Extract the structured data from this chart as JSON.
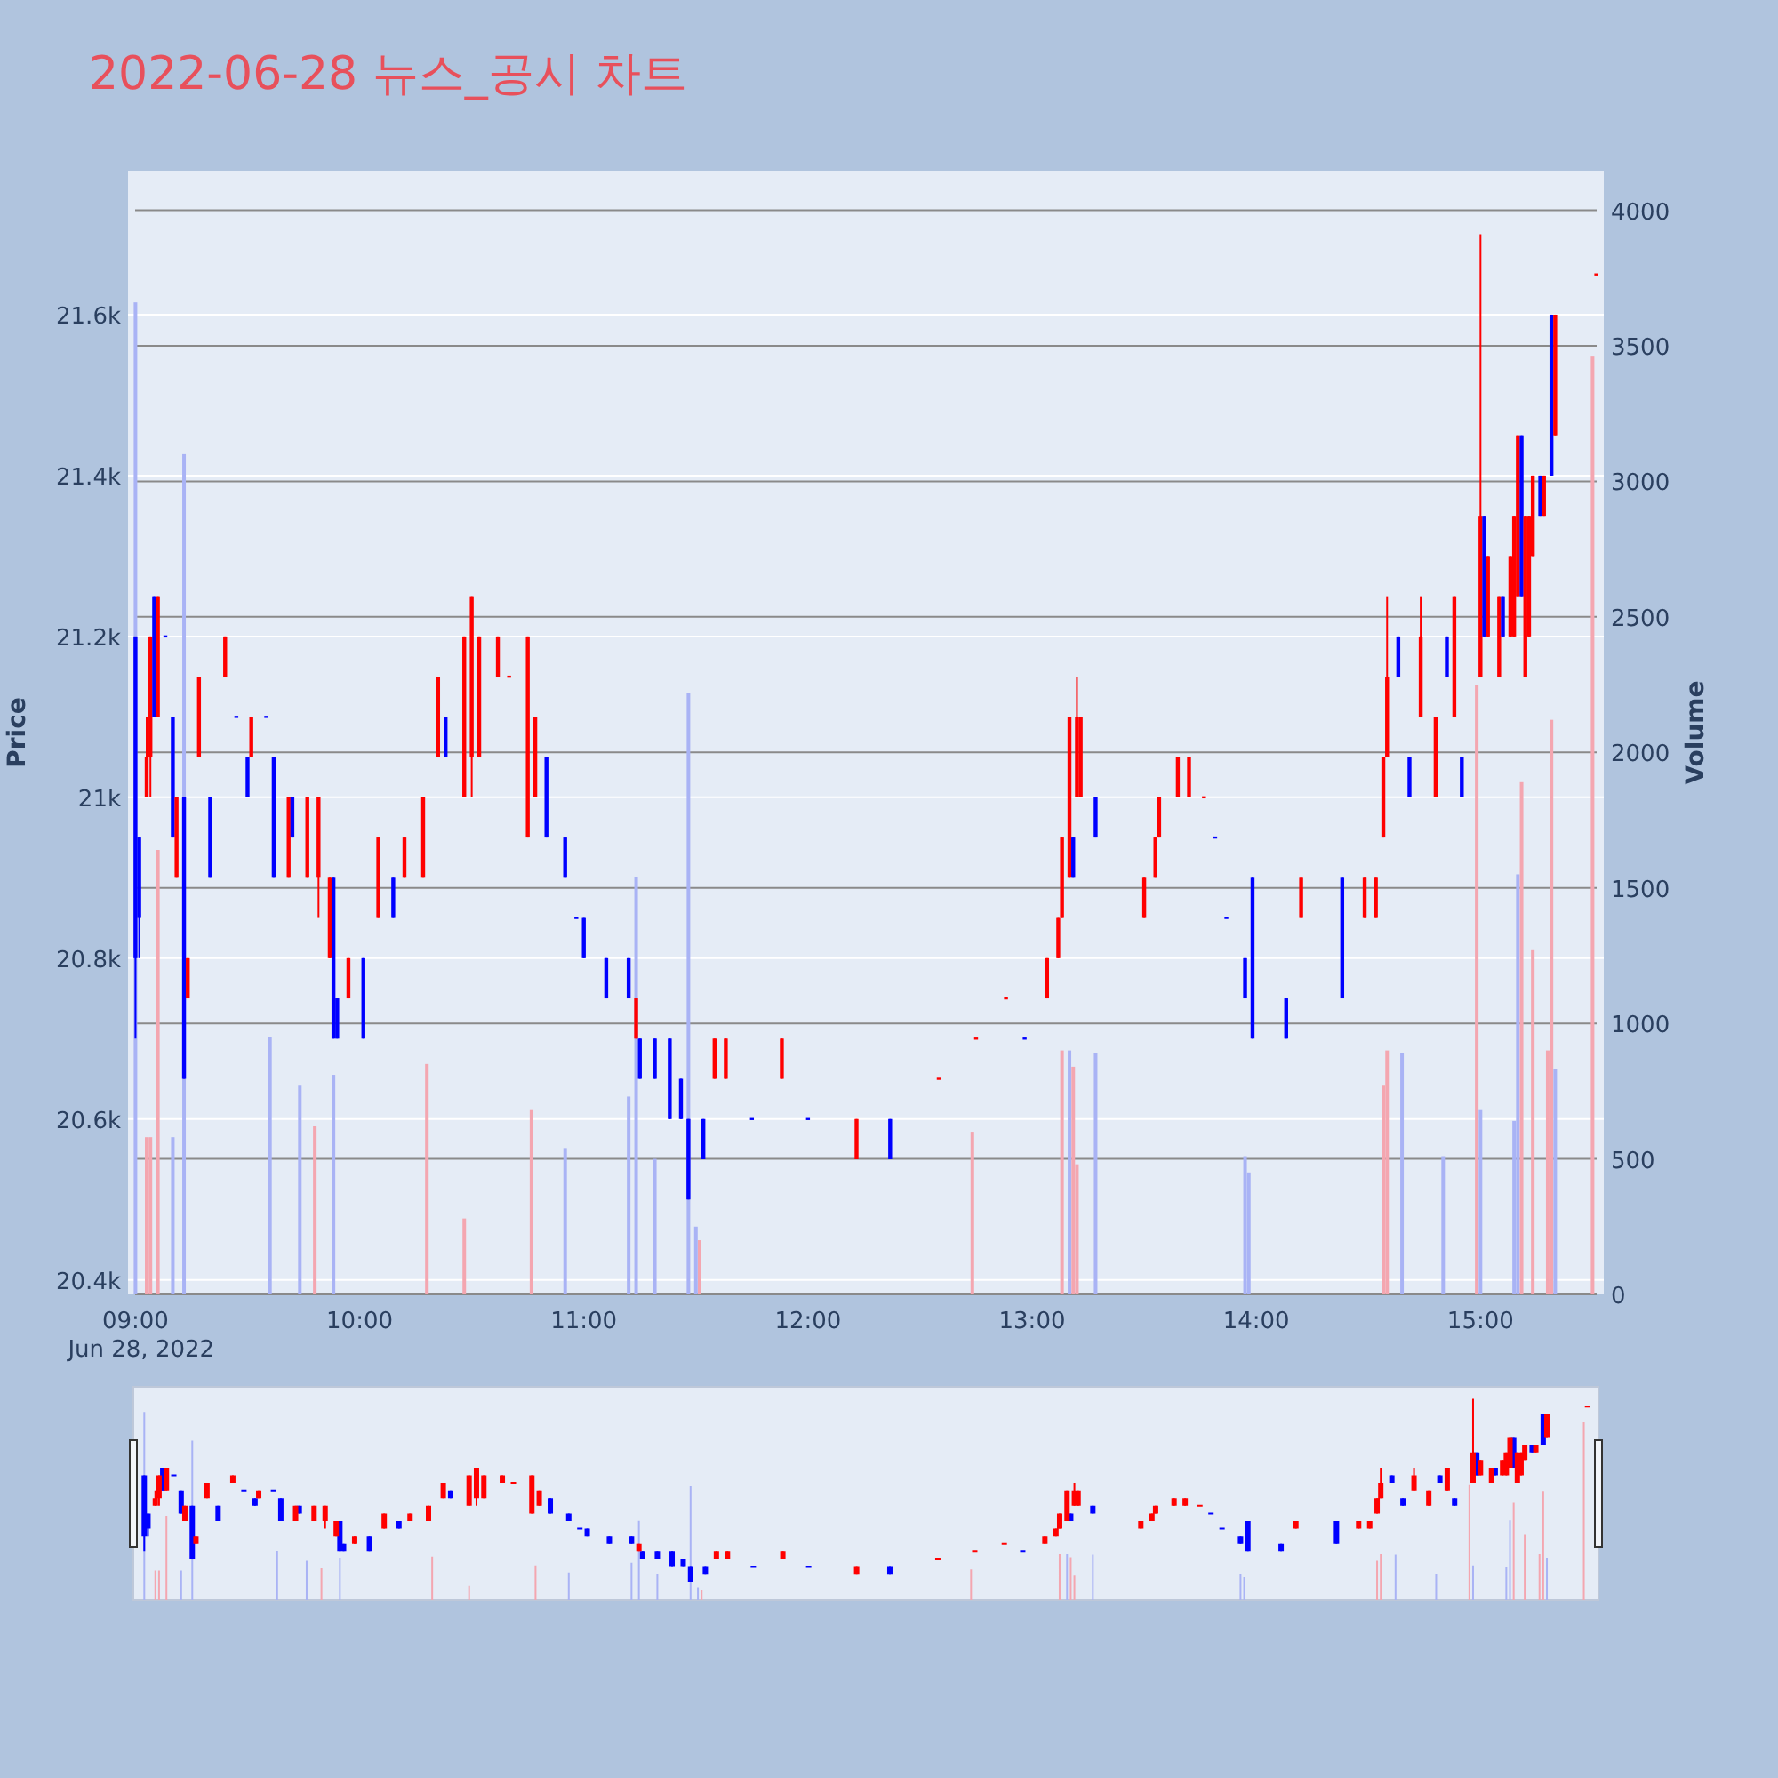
{
  "chart_data": {
    "type": "candlestick",
    "title": "2022-06-28 뉴스_공시 차트",
    "ylabel": "Price",
    "y2label": "Volume",
    "annotations": [
      "Jun 28, 2022"
    ],
    "xlim": [
      "2022-06-28T08:58",
      "2022-06-28T15:33"
    ],
    "xticks": [
      {
        "value": "2022-06-28T09:00",
        "label": "09:00"
      },
      {
        "value": "2022-06-28T10:00",
        "label": "10:00"
      },
      {
        "value": "2022-06-28T11:00",
        "label": "11:00"
      },
      {
        "value": "2022-06-28T12:00",
        "label": "12:00"
      },
      {
        "value": "2022-06-28T13:00",
        "label": "13:00"
      },
      {
        "value": "2022-06-28T14:00",
        "label": "14:00"
      },
      {
        "value": "2022-06-28T15:00",
        "label": "15:00"
      }
    ],
    "ylim": [
      20382,
      21779
    ],
    "yticks": [
      {
        "value": 20400,
        "label": "20.4k"
      },
      {
        "value": 20600,
        "label": "20.6k"
      },
      {
        "value": 20800,
        "label": "20.8k"
      },
      {
        "value": 21000,
        "label": "21k"
      },
      {
        "value": 21200,
        "label": "21.2k"
      },
      {
        "value": 21400,
        "label": "21.4k"
      },
      {
        "value": 21600,
        "label": "21.6k"
      }
    ],
    "y2lim": [
      0,
      4146
    ],
    "y2ticks": [
      0,
      500,
      1000,
      1500,
      2000,
      2500,
      3000,
      3500,
      4000
    ],
    "grid": true,
    "series": [
      {
        "type": "candlestick",
        "x": [
          "2022-06-28T09:00",
          "2022-06-28T09:01",
          "2022-06-28T09:03",
          "2022-06-28T09:04",
          "2022-06-28T09:05",
          "2022-06-28T09:06",
          "2022-06-28T09:08",
          "2022-06-28T09:10",
          "2022-06-28T09:11",
          "2022-06-28T09:13",
          "2022-06-28T09:14",
          "2022-06-28T09:17",
          "2022-06-28T09:20",
          "2022-06-28T09:24",
          "2022-06-28T09:27",
          "2022-06-28T09:30",
          "2022-06-28T09:31",
          "2022-06-28T09:35",
          "2022-06-28T09:37",
          "2022-06-28T09:41",
          "2022-06-28T09:42",
          "2022-06-28T09:46",
          "2022-06-28T09:49",
          "2022-06-28T09:52",
          "2022-06-28T09:53",
          "2022-06-28T09:54",
          "2022-06-28T09:57",
          "2022-06-28T10:01",
          "2022-06-28T10:05",
          "2022-06-28T10:09",
          "2022-06-28T10:12",
          "2022-06-28T10:17",
          "2022-06-28T10:21",
          "2022-06-28T10:23",
          "2022-06-28T10:28",
          "2022-06-28T10:30",
          "2022-06-28T10:32",
          "2022-06-28T10:37",
          "2022-06-28T10:40",
          "2022-06-28T10:45",
          "2022-06-28T10:47",
          "2022-06-28T10:50",
          "2022-06-28T10:55",
          "2022-06-28T10:58",
          "2022-06-28T11:00",
          "2022-06-28T11:06",
          "2022-06-28T11:12",
          "2022-06-28T11:14",
          "2022-06-28T11:15",
          "2022-06-28T11:19",
          "2022-06-28T11:23",
          "2022-06-28T11:26",
          "2022-06-28T11:28",
          "2022-06-28T11:32",
          "2022-06-28T11:35",
          "2022-06-28T11:38",
          "2022-06-28T11:45",
          "2022-06-28T11:53",
          "2022-06-28T12:00",
          "2022-06-28T12:13",
          "2022-06-28T12:22",
          "2022-06-28T12:35",
          "2022-06-28T12:45",
          "2022-06-28T12:53",
          "2022-06-28T12:58",
          "2022-06-28T13:04",
          "2022-06-28T13:07",
          "2022-06-28T13:08",
          "2022-06-28T13:10",
          "2022-06-28T13:11",
          "2022-06-28T13:12",
          "2022-06-28T13:13",
          "2022-06-28T13:17",
          "2022-06-28T13:30",
          "2022-06-28T13:33",
          "2022-06-28T13:34",
          "2022-06-28T13:39",
          "2022-06-28T13:42",
          "2022-06-28T13:46",
          "2022-06-28T13:49",
          "2022-06-28T13:52",
          "2022-06-28T13:57",
          "2022-06-28T13:59",
          "2022-06-28T14:08",
          "2022-06-28T14:12",
          "2022-06-28T14:23",
          "2022-06-28T14:29",
          "2022-06-28T14:32",
          "2022-06-28T14:34",
          "2022-06-28T14:35",
          "2022-06-28T14:38",
          "2022-06-28T14:41",
          "2022-06-28T14:44",
          "2022-06-28T14:48",
          "2022-06-28T14:51",
          "2022-06-28T14:53",
          "2022-06-28T14:55",
          "2022-06-28T15:00",
          "2022-06-28T15:01",
          "2022-06-28T15:02",
          "2022-06-28T15:05",
          "2022-06-28T15:06",
          "2022-06-28T15:08",
          "2022-06-28T15:09",
          "2022-06-28T15:10",
          "2022-06-28T15:11",
          "2022-06-28T15:12",
          "2022-06-28T15:13",
          "2022-06-28T15:14",
          "2022-06-28T15:16",
          "2022-06-28T15:17",
          "2022-06-28T15:19",
          "2022-06-28T15:20",
          "2022-06-28T15:31"
        ],
        "ohlc": [
          [
            21200,
            21200,
            20700,
            20800
          ],
          [
            20950,
            20950,
            20800,
            20850
          ],
          [
            21000,
            21100,
            21000,
            21050
          ],
          [
            21050,
            21200,
            21000,
            21200
          ],
          [
            21250,
            21250,
            21100,
            21100
          ],
          [
            21100,
            21250,
            21100,
            21250
          ],
          [
            21200,
            21200,
            21200,
            21200
          ],
          [
            21100,
            21100,
            20950,
            20950
          ],
          [
            20900,
            21000,
            20900,
            21000
          ],
          [
            21000,
            21000,
            20650,
            20650
          ],
          [
            20750,
            20800,
            20750,
            20800
          ],
          [
            21050,
            21150,
            21050,
            21150
          ],
          [
            21000,
            21000,
            20900,
            20900
          ],
          [
            21150,
            21200,
            21150,
            21200
          ],
          [
            21100,
            21100,
            21100,
            21100
          ],
          [
            21050,
            21050,
            21000,
            21000
          ],
          [
            21050,
            21100,
            21050,
            21100
          ],
          [
            21100,
            21100,
            21100,
            21100
          ],
          [
            21050,
            21050,
            20900,
            20900
          ],
          [
            20900,
            21000,
            20900,
            21000
          ],
          [
            21000,
            21000,
            20950,
            20950
          ],
          [
            20900,
            21000,
            20900,
            21000
          ],
          [
            20900,
            21000,
            20850,
            21000
          ],
          [
            20800,
            20900,
            20800,
            20900
          ],
          [
            20900,
            20900,
            20700,
            20700
          ],
          [
            20750,
            20750,
            20700,
            20700
          ],
          [
            20750,
            20800,
            20750,
            20800
          ],
          [
            20800,
            20800,
            20700,
            20700
          ],
          [
            20850,
            20950,
            20850,
            20950
          ],
          [
            20900,
            20900,
            20850,
            20850
          ],
          [
            20900,
            20950,
            20900,
            20950
          ],
          [
            20900,
            21000,
            20900,
            21000
          ],
          [
            21050,
            21150,
            21050,
            21150
          ],
          [
            21100,
            21100,
            21050,
            21050
          ],
          [
            21000,
            21200,
            21000,
            21200
          ],
          [
            21050,
            21250,
            21000,
            21250
          ],
          [
            21050,
            21200,
            21050,
            21200
          ],
          [
            21150,
            21200,
            21150,
            21200
          ],
          [
            21150,
            21150,
            21150,
            21150
          ],
          [
            20950,
            21200,
            20950,
            21200
          ],
          [
            21000,
            21100,
            21000,
            21100
          ],
          [
            21050,
            21050,
            20950,
            20950
          ],
          [
            20950,
            20950,
            20900,
            20900
          ],
          [
            20850,
            20850,
            20850,
            20850
          ],
          [
            20850,
            20850,
            20800,
            20800
          ],
          [
            20800,
            20800,
            20750,
            20750
          ],
          [
            20800,
            20800,
            20750,
            20750
          ],
          [
            20700,
            20750,
            20700,
            20750
          ],
          [
            20700,
            20700,
            20650,
            20650
          ],
          [
            20700,
            20700,
            20650,
            20650
          ],
          [
            20700,
            20700,
            20600,
            20600
          ],
          [
            20650,
            20650,
            20600,
            20600
          ],
          [
            20600,
            20600,
            20500,
            20500
          ],
          [
            20600,
            20600,
            20550,
            20550
          ],
          [
            20650,
            20700,
            20650,
            20700
          ],
          [
            20650,
            20700,
            20650,
            20700
          ],
          [
            20600,
            20600,
            20600,
            20600
          ],
          [
            20650,
            20700,
            20650,
            20700
          ],
          [
            20600,
            20600,
            20600,
            20600
          ],
          [
            20550,
            20600,
            20550,
            20600
          ],
          [
            20600,
            20600,
            20550,
            20550
          ],
          [
            20650,
            20650,
            20650,
            20650
          ],
          [
            20700,
            20700,
            20700,
            20700
          ],
          [
            20750,
            20750,
            20750,
            20750
          ],
          [
            20700,
            20700,
            20700,
            20700
          ],
          [
            20750,
            20800,
            20750,
            20800
          ],
          [
            20800,
            20850,
            20800,
            20850
          ],
          [
            20850,
            20950,
            20850,
            20950
          ],
          [
            20900,
            21100,
            20900,
            21100
          ],
          [
            20950,
            20950,
            20900,
            20900
          ],
          [
            21000,
            21150,
            21000,
            21100
          ],
          [
            21000,
            21100,
            21000,
            21100
          ],
          [
            21000,
            21000,
            20950,
            20950
          ],
          [
            20850,
            20900,
            20850,
            20900
          ],
          [
            20900,
            20950,
            20900,
            20950
          ],
          [
            20950,
            21000,
            20950,
            21000
          ],
          [
            21000,
            21050,
            21000,
            21050
          ],
          [
            21000,
            21050,
            21000,
            21050
          ],
          [
            21000,
            21000,
            21000,
            21000
          ],
          [
            20950,
            20950,
            20950,
            20950
          ],
          [
            20850,
            20850,
            20850,
            20850
          ],
          [
            20800,
            20800,
            20750,
            20750
          ],
          [
            20900,
            20900,
            20700,
            20700
          ],
          [
            20750,
            20750,
            20700,
            20700
          ],
          [
            20850,
            20900,
            20850,
            20900
          ],
          [
            20900,
            20900,
            20750,
            20750
          ],
          [
            20850,
            20900,
            20850,
            20900
          ],
          [
            20850,
            20900,
            20850,
            20900
          ],
          [
            20950,
            21050,
            20950,
            21050
          ],
          [
            21050,
            21250,
            21050,
            21150
          ],
          [
            21200,
            21200,
            21150,
            21150
          ],
          [
            21050,
            21050,
            21000,
            21000
          ],
          [
            21100,
            21250,
            21100,
            21200
          ],
          [
            21000,
            21100,
            21000,
            21100
          ],
          [
            21200,
            21200,
            21150,
            21150
          ],
          [
            21100,
            21250,
            21100,
            21250
          ],
          [
            21050,
            21050,
            21000,
            21000
          ],
          [
            21150,
            21700,
            21150,
            21350
          ],
          [
            21350,
            21350,
            21200,
            21200
          ],
          [
            21200,
            21300,
            21200,
            21300
          ],
          [
            21150,
            21250,
            21150,
            21250
          ],
          [
            21250,
            21250,
            21200,
            21200
          ],
          [
            21200,
            21300,
            21200,
            21300
          ],
          [
            21200,
            21350,
            21200,
            21350
          ],
          [
            21250,
            21450,
            21250,
            21450
          ],
          [
            21450,
            21450,
            21250,
            21250
          ],
          [
            21150,
            21350,
            21150,
            21350
          ],
          [
            21200,
            21350,
            21200,
            21350
          ],
          [
            21300,
            21400,
            21300,
            21400
          ],
          [
            21400,
            21400,
            21350,
            21350
          ],
          [
            21350,
            21400,
            21350,
            21400
          ],
          [
            21600,
            21600,
            21400,
            21400
          ],
          [
            21450,
            21600,
            21450,
            21600
          ],
          [
            21650,
            21650,
            21650,
            21650
          ]
        ],
        "colors": [
          "#0000ff",
          "#0000ff",
          "#ff0000",
          "#ff0000",
          "#0000ff",
          "#ff0000",
          "#0000ff",
          "#0000ff",
          "#ff0000",
          "#0000ff",
          "#ff0000",
          "#ff0000",
          "#0000ff",
          "#ff0000",
          "#0000ff",
          "#0000ff",
          "#ff0000",
          "#0000ff",
          "#0000ff",
          "#ff0000",
          "#0000ff",
          "#ff0000",
          "#ff0000",
          "#ff0000",
          "#0000ff",
          "#0000ff",
          "#ff0000",
          "#0000ff",
          "#ff0000",
          "#0000ff",
          "#ff0000",
          "#ff0000",
          "#ff0000",
          "#0000ff",
          "#ff0000",
          "#ff0000",
          "#ff0000",
          "#ff0000",
          "#ff0000",
          "#ff0000",
          "#ff0000",
          "#0000ff",
          "#0000ff",
          "#0000ff",
          "#0000ff",
          "#0000ff",
          "#0000ff",
          "#ff0000",
          "#0000ff",
          "#0000ff",
          "#0000ff",
          "#0000ff",
          "#0000ff",
          "#0000ff",
          "#ff0000",
          "#ff0000",
          "#0000ff",
          "#ff0000",
          "#0000ff",
          "#ff0000",
          "#0000ff",
          "#ff0000",
          "#ff0000",
          "#ff0000",
          "#0000ff",
          "#ff0000",
          "#ff0000",
          "#ff0000",
          "#ff0000",
          "#0000ff",
          "#ff0000",
          "#ff0000",
          "#0000ff",
          "#ff0000",
          "#ff0000",
          "#ff0000",
          "#ff0000",
          "#ff0000",
          "#ff0000",
          "#0000ff",
          "#0000ff",
          "#0000ff",
          "#0000ff",
          "#0000ff",
          "#ff0000",
          "#0000ff",
          "#ff0000",
          "#ff0000",
          "#ff0000",
          "#ff0000",
          "#0000ff",
          "#0000ff",
          "#ff0000",
          "#ff0000",
          "#0000ff",
          "#ff0000",
          "#0000ff",
          "#ff0000",
          "#0000ff",
          "#ff0000",
          "#ff0000",
          "#0000ff",
          "#ff0000",
          "#ff0000",
          "#ff0000",
          "#0000ff",
          "#ff0000",
          "#ff0000",
          "#ff0000",
          "#0000ff",
          "#ff0000",
          "#0000ff",
          "#ff0000",
          "#ff0000"
        ]
      },
      {
        "type": "bar",
        "axis": "y2",
        "x": [
          "2022-06-28T09:00",
          "2022-06-28T09:03",
          "2022-06-28T09:04",
          "2022-06-28T09:06",
          "2022-06-28T09:10",
          "2022-06-28T09:13",
          "2022-06-28T09:36",
          "2022-06-28T09:44",
          "2022-06-28T09:48",
          "2022-06-28T09:53",
          "2022-06-28T10:18",
          "2022-06-28T10:28",
          "2022-06-28T10:46",
          "2022-06-28T10:55",
          "2022-06-28T11:12",
          "2022-06-28T11:14",
          "2022-06-28T11:19",
          "2022-06-28T11:28",
          "2022-06-28T11:30",
          "2022-06-28T11:31",
          "2022-06-28T12:44",
          "2022-06-28T13:08",
          "2022-06-28T13:10",
          "2022-06-28T13:11",
          "2022-06-28T13:12",
          "2022-06-28T13:17",
          "2022-06-28T13:57",
          "2022-06-28T13:58",
          "2022-06-28T14:34",
          "2022-06-28T14:35",
          "2022-06-28T14:39",
          "2022-06-28T14:50",
          "2022-06-28T14:59",
          "2022-06-28T15:00",
          "2022-06-28T15:09",
          "2022-06-28T15:10",
          "2022-06-28T15:11",
          "2022-06-28T15:14",
          "2022-06-28T15:18",
          "2022-06-28T15:19",
          "2022-06-28T15:20",
          "2022-06-28T15:30"
        ],
        "values": [
          3660,
          580,
          580,
          1640,
          580,
          3100,
          950,
          770,
          620,
          810,
          850,
          280,
          680,
          540,
          730,
          1540,
          500,
          2220,
          250,
          200,
          600,
          900,
          900,
          840,
          480,
          890,
          510,
          450,
          770,
          900,
          890,
          510,
          2250,
          680,
          640,
          1550,
          1890,
          1270,
          900,
          2120,
          830,
          3460
        ],
        "colors": [
          "#a9b3f5",
          "#f4a6b0",
          "#f4a6b0",
          "#f4a6b0",
          "#a9b3f5",
          "#a9b3f5",
          "#a9b3f5",
          "#a9b3f5",
          "#f4a6b0",
          "#a9b3f5",
          "#f4a6b0",
          "#f4a6b0",
          "#f4a6b0",
          "#a9b3f5",
          "#a9b3f5",
          "#a9b3f5",
          "#a9b3f5",
          "#a9b3f5",
          "#a9b3f5",
          "#f4a6b0",
          "#f4a6b0",
          "#f4a6b0",
          "#a9b3f5",
          "#f4a6b0",
          "#f4a6b0",
          "#a9b3f5",
          "#a9b3f5",
          "#a9b3f5",
          "#f4a6b0",
          "#f4a6b0",
          "#a9b3f5",
          "#a9b3f5",
          "#f4a6b0",
          "#a9b3f5",
          "#a9b3f5",
          "#a9b3f5",
          "#f4a6b0",
          "#f4a6b0",
          "#f4a6b0",
          "#f4a6b0",
          "#a9b3f5",
          "#f4a6b0"
        ]
      }
    ]
  }
}
